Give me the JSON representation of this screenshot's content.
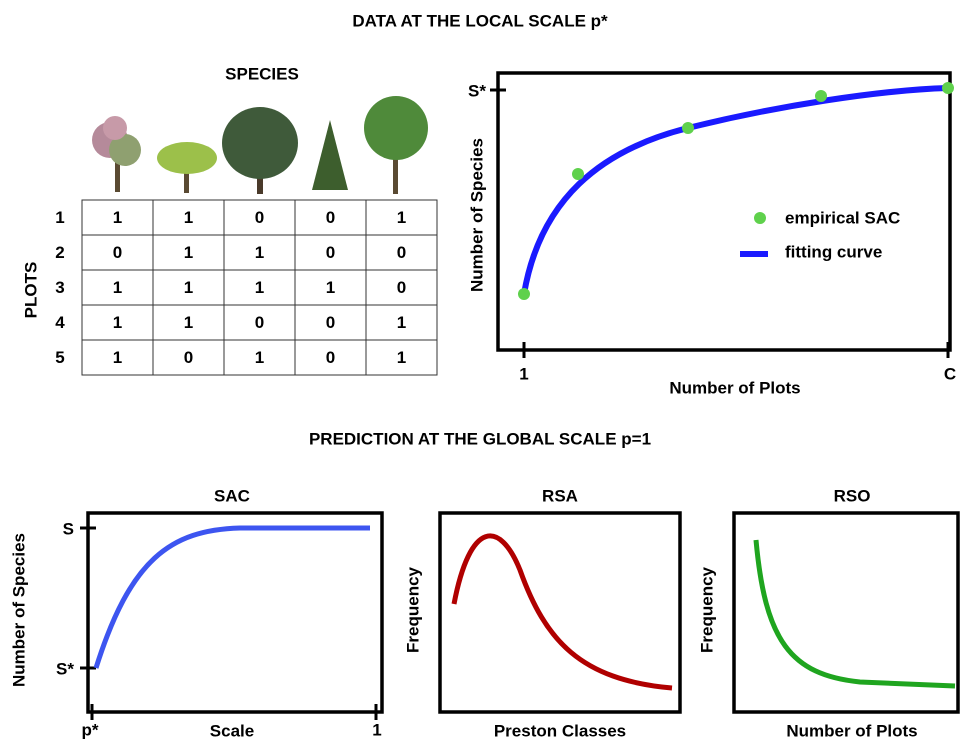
{
  "top_title": "DATA AT THE LOCAL SCALE p*",
  "species_label": "SPECIES",
  "plots_label": "PLOTS",
  "table": {
    "row_labels": [
      "1",
      "2",
      "3",
      "4",
      "5"
    ],
    "rows": [
      [
        1,
        1,
        0,
        0,
        1
      ],
      [
        0,
        1,
        1,
        0,
        0
      ],
      [
        1,
        1,
        1,
        1,
        0
      ],
      [
        1,
        1,
        0,
        0,
        1
      ],
      [
        1,
        0,
        1,
        0,
        1
      ]
    ]
  },
  "local_sac": {
    "y_label": "Number of Species",
    "x_label": "Number of Plots",
    "y_tick": "S*",
    "x_ticks": [
      "1",
      "C"
    ],
    "legend": [
      "empirical SAC",
      "fitting curve"
    ]
  },
  "bottom_title": "PREDICTION AT THE GLOBAL SCALE p=1",
  "panels": [
    {
      "title": "SAC",
      "y_label": "Number of Species",
      "x_label": "Scale",
      "y_ticks": [
        "S",
        "S*"
      ],
      "x_ticks": [
        "p*",
        "1"
      ]
    },
    {
      "title": "RSA",
      "y_label": "Frequency",
      "x_label": "Preston Classes"
    },
    {
      "title": "RSO",
      "y_label": "Frequency",
      "x_label": "Number of Plots"
    }
  ]
}
